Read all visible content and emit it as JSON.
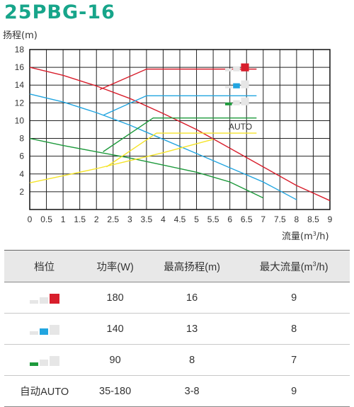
{
  "title": "25PBG-16",
  "chart_data": {
    "type": "line",
    "ylabel": "扬程(m)",
    "xlabel_main": "流量(m",
    "xlabel_sup": "3",
    "xlabel_end": "/h)",
    "xlim": [
      0,
      9
    ],
    "ylim": [
      0,
      18
    ],
    "x_ticks": [
      0,
      0.5,
      1,
      1.5,
      2,
      2.5,
      3,
      3.5,
      4,
      4.5,
      5,
      5.5,
      6,
      6.5,
      7,
      7.5,
      8,
      8.5,
      9
    ],
    "x_tick_labels": [
      "0",
      "0.5",
      "1",
      "1.5",
      "2",
      "2.5",
      "3",
      "3.5",
      "4",
      "4.5",
      "5",
      "5.5",
      "6",
      "6.5",
      "7",
      "7.5",
      "8",
      "8.5",
      "9"
    ],
    "y_ticks": [
      2,
      4,
      6,
      8,
      10,
      12,
      14,
      16,
      18
    ],
    "y_tick_labels": [
      "2",
      "4",
      "6",
      "8",
      "10",
      "12",
      "14",
      "16",
      "18"
    ],
    "grid": true,
    "series": [
      {
        "color": "#d81e2c",
        "points": [
          [
            0,
            16
          ],
          [
            1,
            15.1
          ],
          [
            2,
            13.9
          ],
          [
            3,
            12.5
          ],
          [
            4,
            10.8
          ],
          [
            5,
            9
          ],
          [
            6,
            6.9
          ],
          [
            7,
            4.8
          ],
          [
            8,
            2.7
          ],
          [
            9,
            1
          ]
        ]
      },
      {
        "color": "#22a5e0",
        "points": [
          [
            0,
            13
          ],
          [
            1,
            12.1
          ],
          [
            2,
            10.9
          ],
          [
            3,
            9.5
          ],
          [
            4,
            7.9
          ],
          [
            5,
            6.3
          ],
          [
            6,
            4.7
          ],
          [
            7,
            3.1
          ],
          [
            8,
            1.1
          ]
        ]
      },
      {
        "color": "#1e9a3c",
        "points": [
          [
            0,
            8
          ],
          [
            1,
            7.2
          ],
          [
            2,
            6.5
          ],
          [
            3,
            5.8
          ],
          [
            4,
            5
          ],
          [
            5,
            4.2
          ],
          [
            6,
            3.1
          ],
          [
            7,
            1.3
          ]
        ]
      },
      {
        "color": "#f5e42a",
        "points": [
          [
            0,
            3
          ],
          [
            1,
            3.8
          ],
          [
            2,
            4.6
          ],
          [
            3,
            5.5
          ],
          [
            4,
            6.4
          ],
          [
            5,
            7.4
          ],
          [
            5.5,
            7.9
          ]
        ]
      }
    ],
    "auto_segments": [
      {
        "color": "#d81e2c",
        "points": [
          [
            2.1,
            13.5
          ],
          [
            3.5,
            15.8
          ],
          [
            6.8,
            15.8
          ]
        ]
      },
      {
        "color": "#22a5e0",
        "points": [
          [
            2.2,
            10.6
          ],
          [
            3.5,
            12.8
          ],
          [
            6.8,
            12.8
          ]
        ]
      },
      {
        "color": "#1e9a3c",
        "points": [
          [
            2.2,
            6.5
          ],
          [
            3.7,
            10.3
          ],
          [
            6.8,
            10.3
          ]
        ]
      },
      {
        "color": "#f5e42a",
        "points": [
          [
            2.3,
            4.8
          ],
          [
            3.8,
            8.6
          ],
          [
            6.8,
            8.6
          ]
        ]
      }
    ],
    "legend": [
      {
        "level": 3,
        "color": "#d81e2c"
      },
      {
        "level": 2,
        "color": "#22a5e0"
      },
      {
        "level": 1,
        "color": "#1e9a3c"
      },
      {
        "label": "AUTO"
      }
    ]
  },
  "table": {
    "headers": [
      "档位",
      "功率(W)",
      "最高扬程(m)",
      "最大流量(m",
      "3",
      "/h)"
    ],
    "rows": [
      {
        "level": 3,
        "color": "#d81e2c",
        "power": "180",
        "head": "16",
        "flow": "9"
      },
      {
        "level": 2,
        "color": "#22a5e0",
        "power": "140",
        "head": "13",
        "flow": "8"
      },
      {
        "level": 1,
        "color": "#1e9a3c",
        "power": "90",
        "head": "8",
        "flow": "7"
      },
      {
        "label": "自动AUTO",
        "power": "35-180",
        "head": "3-8",
        "flow": "9"
      }
    ]
  }
}
